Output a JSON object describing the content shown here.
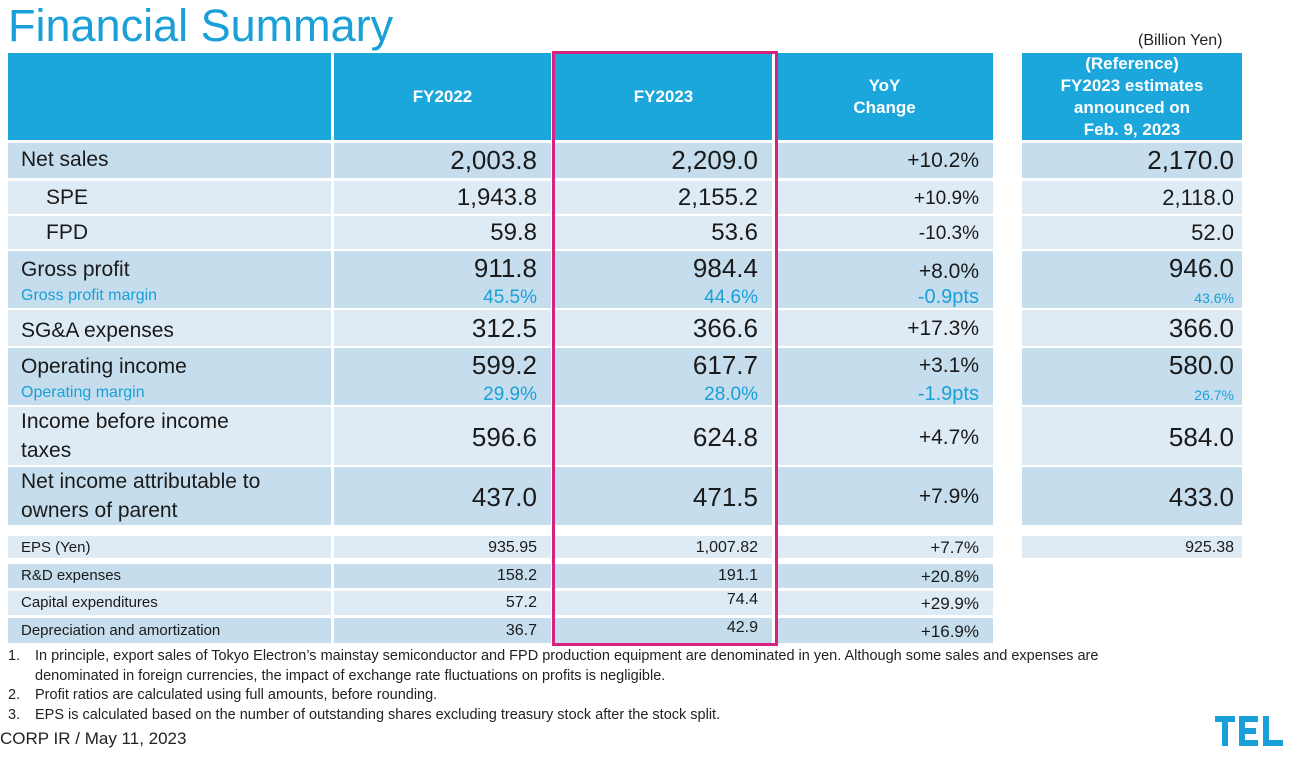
{
  "title": "Financial Summary",
  "unit": "(Billion Yen)",
  "header": {
    "fy2022": "FY2022",
    "fy2023": "FY2023",
    "yoy": [
      "YoY",
      "Change"
    ],
    "reference": [
      "(Reference)",
      "FY2023 estimates",
      "announced on",
      "Feb. 9, 2023"
    ]
  },
  "rows": {
    "net_sales": {
      "label": "Net sales",
      "fy2022": "2,003.8",
      "fy2023": "2,209.0",
      "yoy": "+10.2%",
      "ref": "2,170.0"
    },
    "spe": {
      "label": "SPE",
      "fy2022": "1,943.8",
      "fy2023": "2,155.2",
      "yoy": "+10.9%",
      "ref": "2,118.0"
    },
    "fpd": {
      "label": "FPD",
      "fy2022": "59.8",
      "fy2023": "53.6",
      "yoy": "-10.3%",
      "ref": "52.0"
    },
    "gross_profit": {
      "label": "Gross profit",
      "fy2022": "911.8",
      "fy2023": "984.4",
      "yoy": "+8.0%",
      "ref": "946.0"
    },
    "gross_margin": {
      "label": "Gross profit margin",
      "fy2022": "45.5%",
      "fy2023": "44.6%",
      "yoy": "-0.9pts",
      "ref": "43.6%"
    },
    "sga": {
      "label": "SG&A expenses",
      "fy2022": "312.5",
      "fy2023": "366.6",
      "yoy": "+17.3%",
      "ref": "366.0"
    },
    "operating_income": {
      "label": "Operating income",
      "fy2022": "599.2",
      "fy2023": "617.7",
      "yoy": "+3.1%",
      "ref": "580.0"
    },
    "operating_margin": {
      "label": "Operating margin",
      "fy2022": "29.9%",
      "fy2023": "28.0%",
      "yoy": "-1.9pts",
      "ref": "26.7%"
    },
    "income_before_tax": {
      "label": [
        "Income before income",
        "taxes"
      ],
      "fy2022": "596.6",
      "fy2023": "624.8",
      "yoy": "+4.7%",
      "ref": "584.0"
    },
    "net_income": {
      "label": [
        "Net income attributable to",
        "owners of parent"
      ],
      "fy2022": "437.0",
      "fy2023": "471.5",
      "yoy": "+7.9%",
      "ref": "433.0"
    },
    "eps": {
      "label": "EPS (Yen)",
      "fy2022": "935.95",
      "fy2023": "1,007.82",
      "yoy": "+7.7%",
      "ref": "925.38"
    },
    "rnd": {
      "label": "R&D expenses",
      "fy2022": "158.2",
      "fy2023": "191.1",
      "yoy": "+20.8%"
    },
    "capex": {
      "label": "Capital expenditures",
      "fy2022": "57.2",
      "fy2023": "74.4",
      "yoy": "+29.9%"
    },
    "depreciation": {
      "label": "Depreciation and amortization",
      "fy2022": "36.7",
      "fy2023": "42.9",
      "yoy": "+16.9%"
    }
  },
  "notes": [
    {
      "num": "1.",
      "lines": [
        "In principle, export sales of Tokyo Electron’s mainstay semiconductor and FPD production equipment are denominated in yen. Although some sales and expenses are",
        "denominated in foreign currencies, the impact of exchange rate fluctuations on profits is negligible."
      ]
    },
    {
      "num": "2.",
      "lines": [
        "Profit ratios are calculated using full amounts, before rounding."
      ]
    },
    {
      "num": "3.",
      "lines": [
        "EPS is calculated based on the number of outstanding shares excluding treasury stock after the stock split."
      ]
    }
  ],
  "footer": "CORP IR / May 11, 2023",
  "logo_text": "TEL",
  "colors": {
    "accent": "#1aa0d8",
    "header_bg": "#1ba7dc",
    "row_dark": "#c5dded",
    "row_light": "#deebf5",
    "highlight": "#d6247e"
  }
}
